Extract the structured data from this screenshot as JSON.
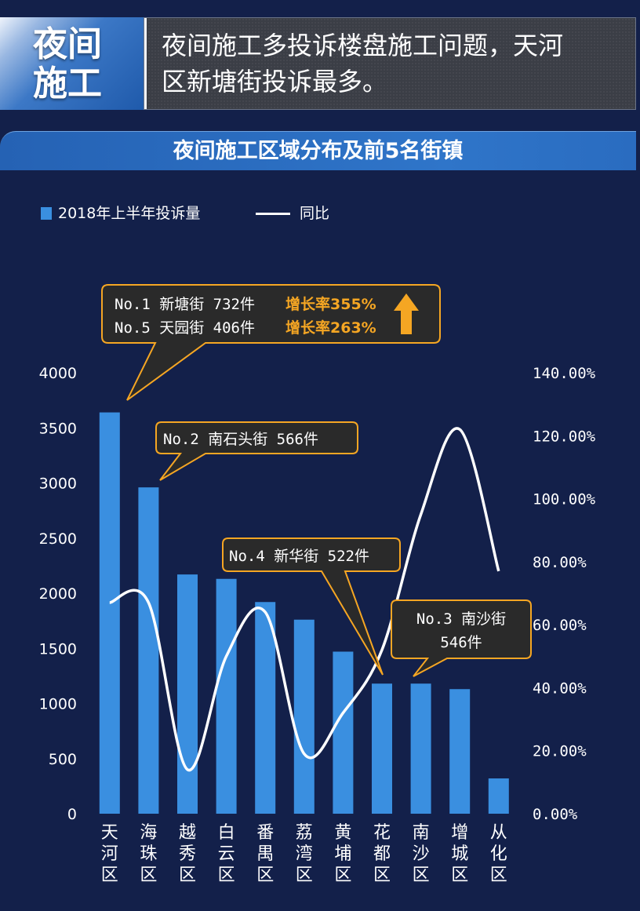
{
  "header": {
    "tag_line1": "夜间",
    "tag_line2": "施工",
    "text_line1": "夜间施工多投诉楼盘施工问题，天河",
    "text_line2": "区新塘街投诉最多。"
  },
  "subtitle": "夜间施工区域分布及前5名街镇",
  "legend": {
    "bar_label": "2018年上半年投诉量",
    "line_label": "同比"
  },
  "colors": {
    "background": "#13204a",
    "bar": "#3a8fe0",
    "line": "#ffffff",
    "accent": "#f5a623",
    "callout_bg": "#2a2a2a"
  },
  "callouts": {
    "no1": "No.1 新塘街 732件",
    "no1_rate": "增长率355%",
    "no5": "No.5 天园街 406件",
    "no5_rate": "增长率263%",
    "arrow_icon": "up-arrow-icon",
    "no2": "No.2 南石头街 566件",
    "no4": "No.4 新华街 522件",
    "no3_line1": "No.3 南沙街",
    "no3_line2": "546件"
  },
  "chart_data": {
    "type": "bar",
    "categories": [
      "天河区",
      "海珠区",
      "越秀区",
      "白云区",
      "番禺区",
      "荔湾区",
      "黄埔区",
      "花都区",
      "南沙区",
      "增城区",
      "从化区"
    ],
    "category_chars": [
      [
        "天",
        "河",
        "区"
      ],
      [
        "海",
        "珠",
        "区"
      ],
      [
        "越",
        "秀",
        "区"
      ],
      [
        "白",
        "云",
        "区"
      ],
      [
        "番",
        "禺",
        "区"
      ],
      [
        "荔",
        "湾",
        "区"
      ],
      [
        "黄",
        "埔",
        "区"
      ],
      [
        "花",
        "都",
        "区"
      ],
      [
        "南",
        "沙",
        "区"
      ],
      [
        "增",
        "城",
        "区"
      ],
      [
        "从",
        "化",
        "区"
      ]
    ],
    "series": [
      {
        "name": "2018年上半年投诉量",
        "type": "bar",
        "axis": "left",
        "values": [
          3640,
          2960,
          2170,
          2130,
          1920,
          1760,
          1470,
          1180,
          1180,
          1130,
          320
        ]
      },
      {
        "name": "同比",
        "type": "line",
        "axis": "right",
        "unit": "%",
        "values": [
          67,
          67,
          14,
          50,
          64,
          19,
          32,
          52,
          95,
          122,
          77
        ]
      }
    ],
    "ylim": [
      0,
      4000
    ],
    "y_ticks": [
      "0",
      "500",
      "1000",
      "1500",
      "2000",
      "2500",
      "3000",
      "3500",
      "4000"
    ],
    "y2lim": [
      0,
      140
    ],
    "y2_ticks": [
      "0.00%",
      "20.00%",
      "40.00%",
      "60.00%",
      "80.00%",
      "100.00%",
      "120.00%",
      "140.00%"
    ],
    "grid": false,
    "legend_position": "top-left"
  }
}
